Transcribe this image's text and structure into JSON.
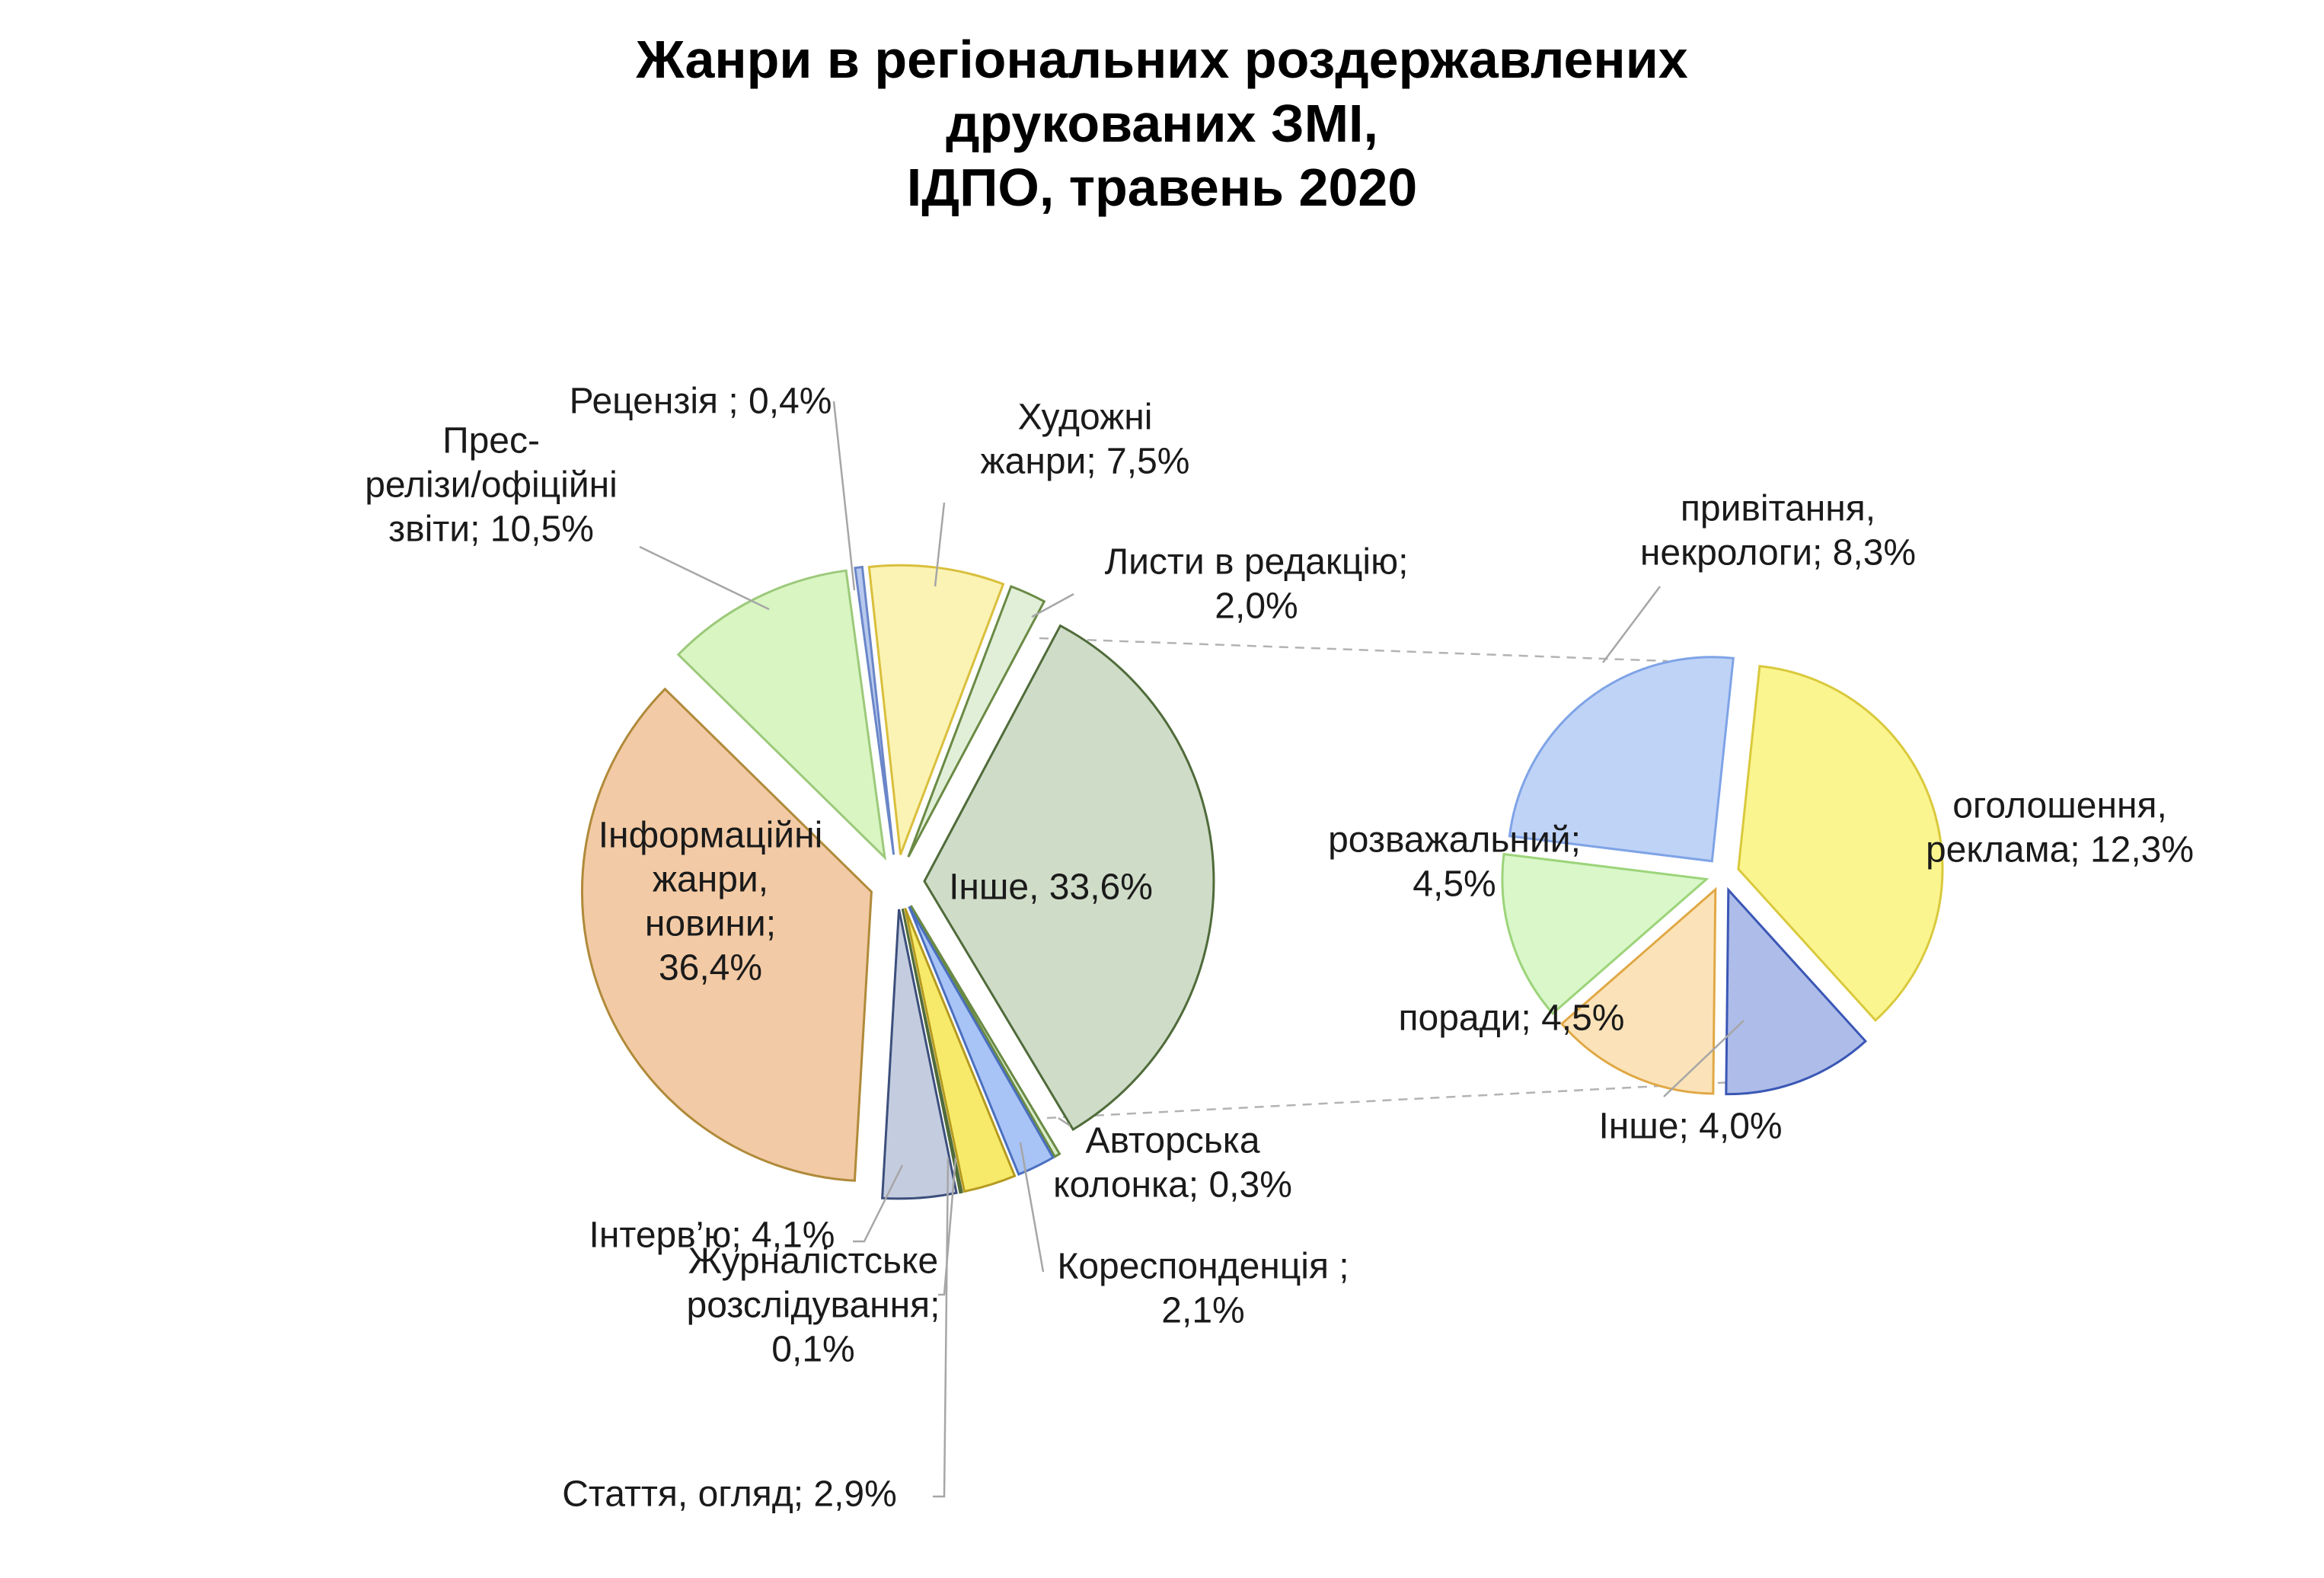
{
  "chart_data": {
    "type": "pie",
    "subtype": "pie-of-pie",
    "title": [
      "Жанри в регіональних роздержавлених",
      "друкованих ЗМІ,",
      "ІДПО, травень 2020"
    ],
    "legend": "none",
    "main_pie": {
      "slices": [
        {
          "name": "Інше",
          "label": [
            "Інше, 33,6%"
          ],
          "value": 33.6,
          "fill": "#cfdcc8",
          "stroke": "#4f6b3a",
          "exploded": true
        },
        {
          "name": "Авторська колонка",
          "label": [
            "Авторська",
            "колонка; 0,3%"
          ],
          "value": 0.3,
          "fill": "#d9ecc9",
          "stroke": "#6a8a44"
        },
        {
          "name": "Кореспонденція",
          "label": [
            "Кореспонденція ;",
            "2,1%"
          ],
          "value": 2.1,
          "fill": "#a8c3f5",
          "stroke": "#4a6fbf"
        },
        {
          "name": "Стаття, огляд",
          "label": [
            "Стаття, огляд; 2,9%"
          ],
          "value": 2.9,
          "fill": "#f7ea6a",
          "stroke": "#b59a20"
        },
        {
          "name": "Журналістське розслідування",
          "label": [
            "Журналістське",
            "розслідування;",
            "0,1%"
          ],
          "value": 0.1,
          "fill": "#c9d7b8",
          "stroke": "#4f6b3a"
        },
        {
          "name": "Інтерв’ю",
          "label": [
            "Інтерв’ю; 4,1%"
          ],
          "value": 4.1,
          "fill": "#c4ccdf",
          "stroke": "#3c4f7c"
        },
        {
          "name": "Інформаційні жанри, новини",
          "label": [
            "Інформаційні",
            "жанри,",
            "новини;",
            "36,4%"
          ],
          "value": 36.4,
          "fill": "#f2caa5",
          "stroke": "#b08a3a",
          "exploded": true
        },
        {
          "name": "Прес-релізи/офіційні звіти",
          "label": [
            "Прес-",
            "релізи/офіційні",
            "звіти; 10,5%"
          ],
          "value": 10.5,
          "fill": "#d8f5c2",
          "stroke": "#9cc97a"
        },
        {
          "name": "Рецензія",
          "label": [
            "Рецензія ; 0,4%"
          ],
          "value": 0.4,
          "fill": "#b7c8ee",
          "stroke": "#6a86c8"
        },
        {
          "name": "Художні жанри",
          "label": [
            "Художні",
            "жанри; 7,5%"
          ],
          "value": 7.5,
          "fill": "#fbf3b4",
          "stroke": "#d9bf3c"
        },
        {
          "name": "Листи в редакцію",
          "label": [
            "Листи в редакцію;",
            "2,0%"
          ],
          "value": 2.0,
          "fill": "#e1efd9",
          "stroke": "#6a8a44"
        }
      ]
    },
    "secondary_pie": {
      "slices": [
        {
          "name": "оголошення, реклама",
          "label": [
            "оголошення,",
            "реклама; 12,3%"
          ],
          "value": 12.3,
          "fill": "#fbf590",
          "stroke": "#d9c93c"
        },
        {
          "name": "Інше",
          "label": [
            "Інше; 4,0%"
          ],
          "value": 4.0,
          "fill": "#aebce9",
          "stroke": "#3a57b5"
        },
        {
          "name": "поради",
          "label": [
            "поради; 4,5%"
          ],
          "value": 4.5,
          "fill": "#fbe2b8",
          "stroke": "#e0a845"
        },
        {
          "name": "розважальний",
          "label": [
            "розважальний;",
            "4,5%"
          ],
          "value": 4.5,
          "fill": "#d9f7c9",
          "stroke": "#9cd47a"
        },
        {
          "name": "привітання, некрологи",
          "label": [
            "привітання,",
            "некрологи; 8,3%"
          ],
          "value": 8.3,
          "fill": "#bfd3f7",
          "stroke": "#7fa3e6"
        }
      ]
    }
  }
}
